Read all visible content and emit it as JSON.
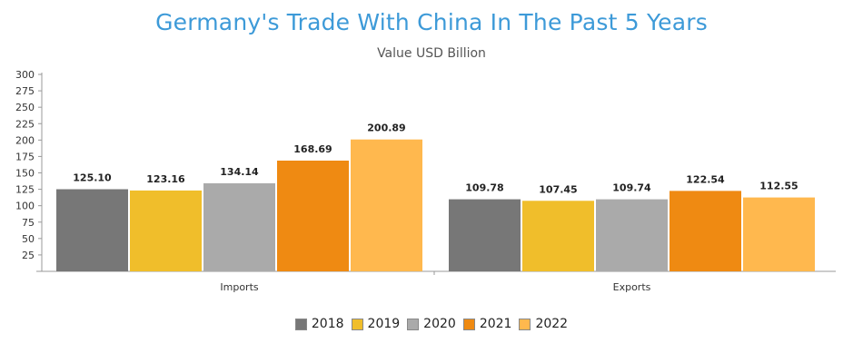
{
  "chart_data": {
    "type": "bar",
    "title": "Germany's Trade With China In The Past 5 Years",
    "subtitle": "Value USD Billion",
    "categories": [
      "Imports",
      "Exports"
    ],
    "series": [
      {
        "name": "2018",
        "color": "#777777",
        "values": [
          125.1,
          109.78
        ],
        "labels": [
          "125.10",
          "109.78"
        ]
      },
      {
        "name": "2019",
        "color": "#f0be2b",
        "values": [
          123.16,
          107.45
        ],
        "labels": [
          "123.16",
          "107.45"
        ]
      },
      {
        "name": "2020",
        "color": "#aaaaaa",
        "values": [
          134.14,
          109.74
        ],
        "labels": [
          "134.14",
          "109.74"
        ]
      },
      {
        "name": "2021",
        "color": "#ef8a12",
        "values": [
          168.69,
          122.54
        ],
        "labels": [
          "168.69",
          "122.54"
        ]
      },
      {
        "name": "2022",
        "color": "#ffb84e",
        "values": [
          200.89,
          112.55
        ],
        "labels": [
          "200.89",
          "112.55"
        ]
      }
    ],
    "ylim": [
      0,
      300
    ],
    "yticks": [
      "25",
      "50",
      "75",
      "100",
      "125",
      "150",
      "175",
      "200",
      "225",
      "250",
      "275",
      "300"
    ],
    "legend_position": "bottom",
    "grid": false
  }
}
